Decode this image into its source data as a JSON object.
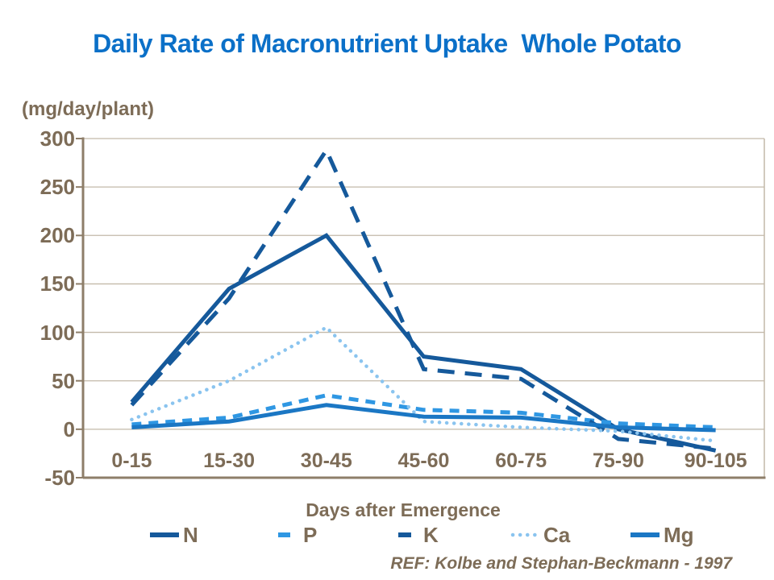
{
  "title": "Daily Rate of Macronutrient Uptake  Whole Potato",
  "y_axis_unit_label": "(mg/day/plant)",
  "x_axis_title": "Days after Emergence",
  "reference_note": "REF: Kolbe and Stephan-Beckmann - 1997",
  "colors": {
    "title_blue": "#0B70C8",
    "axis_text_brown": "#7D6C57",
    "gridline_tan": "#C3B9A9",
    "axis_line_brown": "#8E7E69",
    "dark_blue": "#15599B",
    "medium_blue": "#1B77C4",
    "bright_blue": "#2F97E3",
    "pale_blue": "#8AC4EF",
    "background": "#FFFFFF"
  },
  "chart_data": {
    "type": "line",
    "title": "Daily Rate of Macronutrient Uptake  Whole Potato",
    "xlabel": "Days after Emergence",
    "ylabel": "(mg/day/plant)",
    "categories": [
      "0-15",
      "15-30",
      "30-45",
      "45-60",
      "60-75",
      "75-90",
      "90-105"
    ],
    "yticks": [
      300,
      250,
      200,
      150,
      100,
      50,
      0,
      -50
    ],
    "ylim": [
      -50,
      300
    ],
    "grid": true,
    "legend_position": "bottom",
    "series": [
      {
        "name": "N",
        "style": "solid",
        "color": "#15599B",
        "values": [
          28,
          145,
          200,
          75,
          62,
          0,
          -22
        ]
      },
      {
        "name": "P",
        "style": "dash",
        "color": "#2F97E3",
        "values": [
          5,
          12,
          35,
          20,
          17,
          6,
          2
        ]
      },
      {
        "name": "K",
        "style": "long-dash",
        "color": "#15599B",
        "values": [
          25,
          135,
          288,
          62,
          52,
          -10,
          -20
        ]
      },
      {
        "name": "Ca",
        "style": "dot",
        "color": "#8AC4EF",
        "values": [
          10,
          50,
          105,
          8,
          2,
          -2,
          -12
        ]
      },
      {
        "name": "Mg",
        "style": "solid",
        "color": "#1B77C4",
        "values": [
          2,
          8,
          25,
          13,
          12,
          2,
          -1
        ]
      }
    ]
  }
}
